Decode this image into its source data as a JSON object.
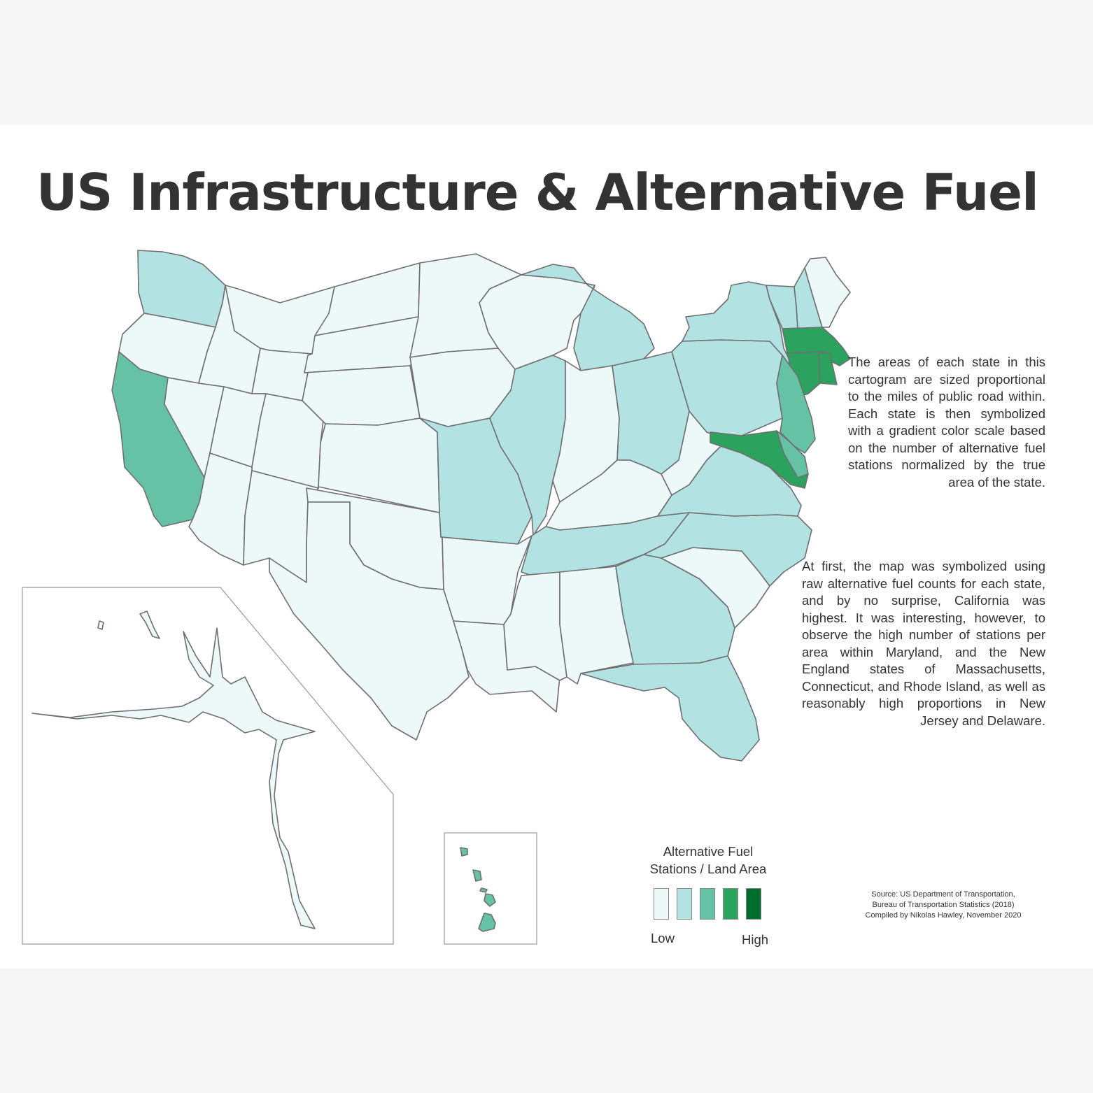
{
  "title": "US Infrastructure & Alternative Fuel",
  "paragraphs": [
    "The areas of each state in this cartogram are sized proportional to the miles of public road within. Each state is then symbolized with a gradient color scale based on the number of alternative fuel stations normalized by the true area of the state.",
    "At first, the map was symbolized using raw alternative fuel counts for each state, and by no surprise, California was highest. It was interesting, however, to observe the high number of stations per area within Maryland, and the New England states of Massachusetts, Connecticut, and Rhode Island, as well as reasonably high proportions in New Jersey and Delaware."
  ],
  "legend": {
    "title_line1": "Alternative Fuel",
    "title_line2": "Stations / Land Area",
    "low_label": "Low",
    "high_label": "High",
    "colors": [
      "#edf8f8",
      "#b2e2e2",
      "#66c2a4",
      "#2ca25f",
      "#006d2c"
    ]
  },
  "source": {
    "line1": "Source: US Department of Transportation,",
    "line2": "Bureau of Transportation Statistics (2018)",
    "line3": "Compiled by Nikolas Hawley, November 2020"
  },
  "state_classes": {
    "washington": 1,
    "oregon": 0,
    "california": 2,
    "idaho": 0,
    "nevada": 0,
    "montana": 0,
    "wyoming": 0,
    "utah": 0,
    "colorado": 0,
    "arizona": 0,
    "new-mexico": 0,
    "north-dakota": 0,
    "south-dakota": 0,
    "nebraska": 0,
    "kansas": 0,
    "oklahoma": 0,
    "texas": 0,
    "minnesota": 0,
    "iowa": 0,
    "missouri": 1,
    "arkansas": 0,
    "louisiana": 0,
    "wisconsin": 0,
    "illinois": 1,
    "michigan": 1,
    "indiana": 0,
    "ohio": 1,
    "kentucky": 0,
    "tennessee": 1,
    "mississippi": 0,
    "alabama": 0,
    "georgia": 1,
    "florida": 1,
    "south-carolina": 0,
    "north-carolina": 1,
    "virginia": 1,
    "west-virginia": 0,
    "pennsylvania": 1,
    "new-york": 1,
    "vermont": 1,
    "new-hampshire": 1,
    "maine": 0,
    "massachusetts": 3,
    "connecticut": 3,
    "rhode-island": 3,
    "new-jersey": 2,
    "delaware": 2,
    "maryland": 3,
    "alaska": 0,
    "hawaii": 2
  }
}
